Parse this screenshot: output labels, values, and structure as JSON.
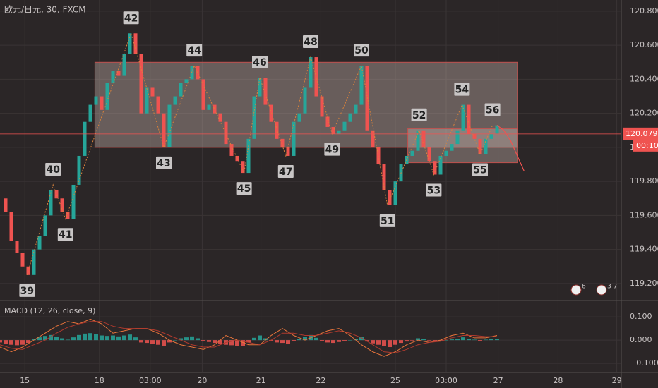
{
  "chart_data": [
    {
      "type": "candlestick",
      "title": "欧元/日元, 30, FXCM",
      "xlim": [
        0,
        550
      ],
      "ylim": [
        119.1,
        120.866
      ],
      "yticks": [
        {
          "value": 119.2,
          "label": "119.200"
        },
        {
          "value": 119.4,
          "label": "119.400"
        },
        {
          "value": 119.6,
          "label": "119.600"
        },
        {
          "value": 119.8,
          "label": "119.800"
        },
        {
          "value": 120.0,
          "label": "120.000"
        },
        {
          "value": 120.2,
          "label": "120.200"
        },
        {
          "value": 120.4,
          "label": "120.400"
        },
        {
          "value": 120.6,
          "label": "120.600"
        },
        {
          "value": 120.8,
          "label": "120.800"
        }
      ],
      "grid": true,
      "up_color": "#26a69a",
      "down_color": "#ef5350",
      "x": [
        0,
        5,
        10,
        15,
        20,
        25,
        30,
        35,
        40,
        45,
        50,
        55,
        60,
        65,
        70,
        75,
        80,
        85,
        90,
        95,
        100,
        105,
        110,
        115,
        120,
        125,
        130,
        135,
        140,
        145,
        150,
        155,
        160,
        165,
        170,
        175,
        180,
        185,
        190,
        195,
        200,
        205,
        210,
        215,
        220,
        225,
        230,
        235,
        240,
        245,
        250,
        255,
        260,
        265,
        270,
        275,
        280,
        285,
        290,
        295,
        300,
        305,
        310,
        315,
        320,
        325,
        330,
        335,
        340,
        345,
        350,
        355,
        360,
        365,
        370,
        375,
        380,
        385,
        390,
        395,
        400,
        405,
        410,
        415,
        420,
        425,
        430,
        435,
        440
      ],
      "values": [
        119.7,
        119.62,
        119.45,
        119.38,
        119.3,
        119.25,
        119.4,
        119.48,
        119.6,
        119.75,
        119.7,
        119.62,
        119.58,
        119.78,
        119.95,
        120.15,
        120.25,
        120.3,
        120.22,
        120.38,
        120.45,
        120.42,
        120.55,
        120.67,
        120.55,
        120.2,
        120.35,
        120.3,
        120.2,
        120.0,
        120.25,
        120.3,
        120.38,
        120.4,
        120.48,
        120.4,
        120.22,
        120.25,
        120.2,
        120.15,
        120.02,
        119.95,
        119.92,
        119.85,
        120.05,
        120.3,
        120.41,
        120.25,
        120.15,
        120.05,
        120.0,
        119.95,
        120.15,
        120.2,
        120.35,
        120.53,
        120.3,
        120.18,
        120.12,
        120.08,
        120.1,
        120.15,
        120.2,
        120.25,
        120.48,
        120.1,
        120.0,
        119.9,
        119.75,
        119.66,
        119.8,
        119.9,
        119.95,
        119.98,
        120.1,
        120.0,
        119.92,
        119.84,
        119.95,
        119.98,
        120.02,
        120.1,
        120.25,
        120.08,
        120.05,
        119.96,
        120.05,
        120.08,
        120.13
      ],
      "waves": [
        {
          "label": "39",
          "x": 24,
          "y": 119.25
        },
        {
          "label": "40",
          "x": 47,
          "y": 119.78
        },
        {
          "label": "41",
          "x": 58,
          "y": 119.58
        },
        {
          "label": "42",
          "x": 116,
          "y": 120.67
        },
        {
          "label": "43",
          "x": 145,
          "y": 120.0
        },
        {
          "label": "44",
          "x": 172,
          "y": 120.48
        },
        {
          "label": "45",
          "x": 216,
          "y": 119.85
        },
        {
          "label": "46",
          "x": 230,
          "y": 120.41
        },
        {
          "label": "47",
          "x": 253,
          "y": 119.95
        },
        {
          "label": "48",
          "x": 275,
          "y": 120.53
        },
        {
          "label": "49",
          "x": 294,
          "y": 120.08
        },
        {
          "label": "50",
          "x": 320,
          "y": 120.48
        },
        {
          "label": "51",
          "x": 343,
          "y": 119.66
        },
        {
          "label": "52",
          "x": 371,
          "y": 120.1
        },
        {
          "label": "53",
          "x": 384,
          "y": 119.84
        },
        {
          "label": "54",
          "x": 409,
          "y": 120.25
        },
        {
          "label": "55",
          "x": 425,
          "y": 119.96
        },
        {
          "label": "56",
          "x": 436,
          "y": 120.13
        }
      ],
      "wave_color": "#d9823b",
      "zones": [
        {
          "x": [
            84,
            458
          ],
          "y": [
            120.0,
            120.5
          ]
        },
        {
          "x": [
            361,
            458
          ],
          "y": [
            119.91,
            120.11
          ]
        }
      ],
      "zone_color": "#c0504d",
      "forecast": {
        "x": [
          440,
          446,
          452,
          458,
          464
        ],
        "values": [
          120.13,
          120.1,
          120.04,
          119.95,
          119.86
        ],
        "color": "#ef5350"
      },
      "current_price": {
        "value": 120.079,
        "label": "120.079"
      },
      "countdown": "00:10",
      "badges": [
        "6",
        "3 7"
      ]
    },
    {
      "type": "macd",
      "title": "MACD (12, 26, close, 9)",
      "xlim": [
        0,
        550
      ],
      "ylim": [
        -0.139,
        0.17
      ],
      "yticks": [
        {
          "value": -0.1,
          "label": "−0.100"
        },
        {
          "value": 0.0,
          "label": "0.000"
        },
        {
          "value": 0.1,
          "label": "0.100"
        }
      ],
      "xticks": [
        {
          "value": 22,
          "label": "15"
        },
        {
          "value": 88,
          "label": "18"
        },
        {
          "value": 133,
          "label": "03:00"
        },
        {
          "value": 179,
          "label": "20"
        },
        {
          "value": 231,
          "label": "21"
        },
        {
          "value": 284,
          "label": "22"
        },
        {
          "value": 350,
          "label": "25"
        },
        {
          "value": 395,
          "label": "03:00"
        },
        {
          "value": 441,
          "label": "27"
        },
        {
          "value": 494,
          "label": "28"
        },
        {
          "value": 546,
          "label": "29"
        }
      ],
      "x": [
        0,
        5,
        10,
        15,
        20,
        25,
        30,
        35,
        40,
        45,
        50,
        55,
        60,
        65,
        70,
        75,
        80,
        85,
        90,
        95,
        100,
        105,
        110,
        115,
        120,
        125,
        130,
        135,
        140,
        145,
        150,
        155,
        160,
        165,
        170,
        175,
        180,
        185,
        190,
        195,
        200,
        205,
        210,
        215,
        220,
        225,
        230,
        235,
        240,
        245,
        250,
        255,
        260,
        265,
        270,
        275,
        280,
        285,
        290,
        295,
        300,
        305,
        310,
        315,
        320,
        325,
        330,
        335,
        340,
        345,
        350,
        355,
        360,
        365,
        370,
        375,
        380,
        385,
        390,
        395,
        400,
        405,
        410,
        415,
        420,
        425,
        430,
        435,
        440
      ],
      "values": [
        -0.01,
        -0.015,
        -0.02,
        -0.022,
        -0.02,
        -0.012,
        0.005,
        0.012,
        0.018,
        0.022,
        0.015,
        0.008,
        0.002,
        0.012,
        0.022,
        0.028,
        0.03,
        0.026,
        0.02,
        0.018,
        0.02,
        0.016,
        0.02,
        0.024,
        0.012,
        -0.01,
        -0.012,
        -0.015,
        -0.02,
        -0.024,
        -0.01,
        0.0,
        0.008,
        0.012,
        0.016,
        0.008,
        -0.005,
        -0.008,
        -0.012,
        -0.016,
        -0.02,
        -0.022,
        -0.024,
        -0.026,
        -0.01,
        0.01,
        0.02,
        0.008,
        -0.004,
        -0.01,
        -0.012,
        -0.015,
        -0.004,
        0.006,
        0.014,
        0.022,
        0.01,
        -0.004,
        -0.01,
        -0.012,
        -0.008,
        -0.004,
        0.0,
        0.004,
        0.014,
        -0.006,
        -0.014,
        -0.02,
        -0.026,
        -0.03,
        -0.02,
        -0.012,
        -0.006,
        -0.002,
        0.008,
        0.004,
        -0.002,
        -0.006,
        -0.002,
        0.0,
        0.003,
        0.006,
        0.012,
        0.004,
        0.002,
        -0.004,
        0.002,
        0.004,
        0.006
      ],
      "up_color": "#26a69a",
      "down_color": "#ef5350",
      "series": [
        {
          "name": "MACD",
          "color": "#e8743b",
          "x": [
            0,
            10,
            20,
            30,
            40,
            50,
            60,
            70,
            80,
            90,
            100,
            110,
            120,
            130,
            140,
            150,
            160,
            170,
            180,
            190,
            200,
            210,
            220,
            230,
            240,
            250,
            260,
            270,
            280,
            290,
            300,
            310,
            320,
            330,
            340,
            350,
            360,
            370,
            380,
            390,
            400,
            410,
            420,
            430,
            440
          ],
          "values": [
            -0.03,
            -0.05,
            -0.03,
            0.0,
            0.03,
            0.06,
            0.08,
            0.07,
            0.09,
            0.07,
            0.03,
            0.04,
            0.05,
            0.05,
            0.03,
            0.0,
            -0.02,
            -0.03,
            -0.04,
            -0.02,
            0.02,
            0.0,
            -0.02,
            -0.02,
            0.02,
            0.05,
            0.02,
            0.0,
            0.02,
            0.04,
            0.05,
            0.02,
            -0.02,
            -0.05,
            -0.07,
            -0.05,
            -0.02,
            0.0,
            -0.01,
            0.0,
            0.02,
            0.03,
            0.01,
            0.01,
            0.02
          ]
        },
        {
          "name": "Signal",
          "color": "#b03a2e",
          "x": [
            0,
            10,
            20,
            30,
            40,
            50,
            60,
            70,
            80,
            90,
            100,
            110,
            120,
            130,
            140,
            150,
            160,
            170,
            180,
            190,
            200,
            210,
            220,
            230,
            240,
            250,
            260,
            270,
            280,
            290,
            300,
            310,
            320,
            330,
            340,
            350,
            360,
            370,
            380,
            390,
            400,
            410,
            420,
            430,
            440
          ],
          "values": [
            -0.02,
            -0.035,
            -0.04,
            -0.02,
            0.0,
            0.03,
            0.055,
            0.07,
            0.08,
            0.08,
            0.06,
            0.05,
            0.05,
            0.05,
            0.04,
            0.02,
            0.0,
            -0.02,
            -0.03,
            -0.03,
            -0.01,
            0.0,
            -0.01,
            -0.02,
            0.0,
            0.03,
            0.03,
            0.02,
            0.02,
            0.03,
            0.04,
            0.03,
            0.01,
            -0.02,
            -0.05,
            -0.055,
            -0.04,
            -0.02,
            -0.01,
            -0.005,
            0.01,
            0.02,
            0.02,
            0.015,
            0.015
          ]
        }
      ]
    }
  ]
}
